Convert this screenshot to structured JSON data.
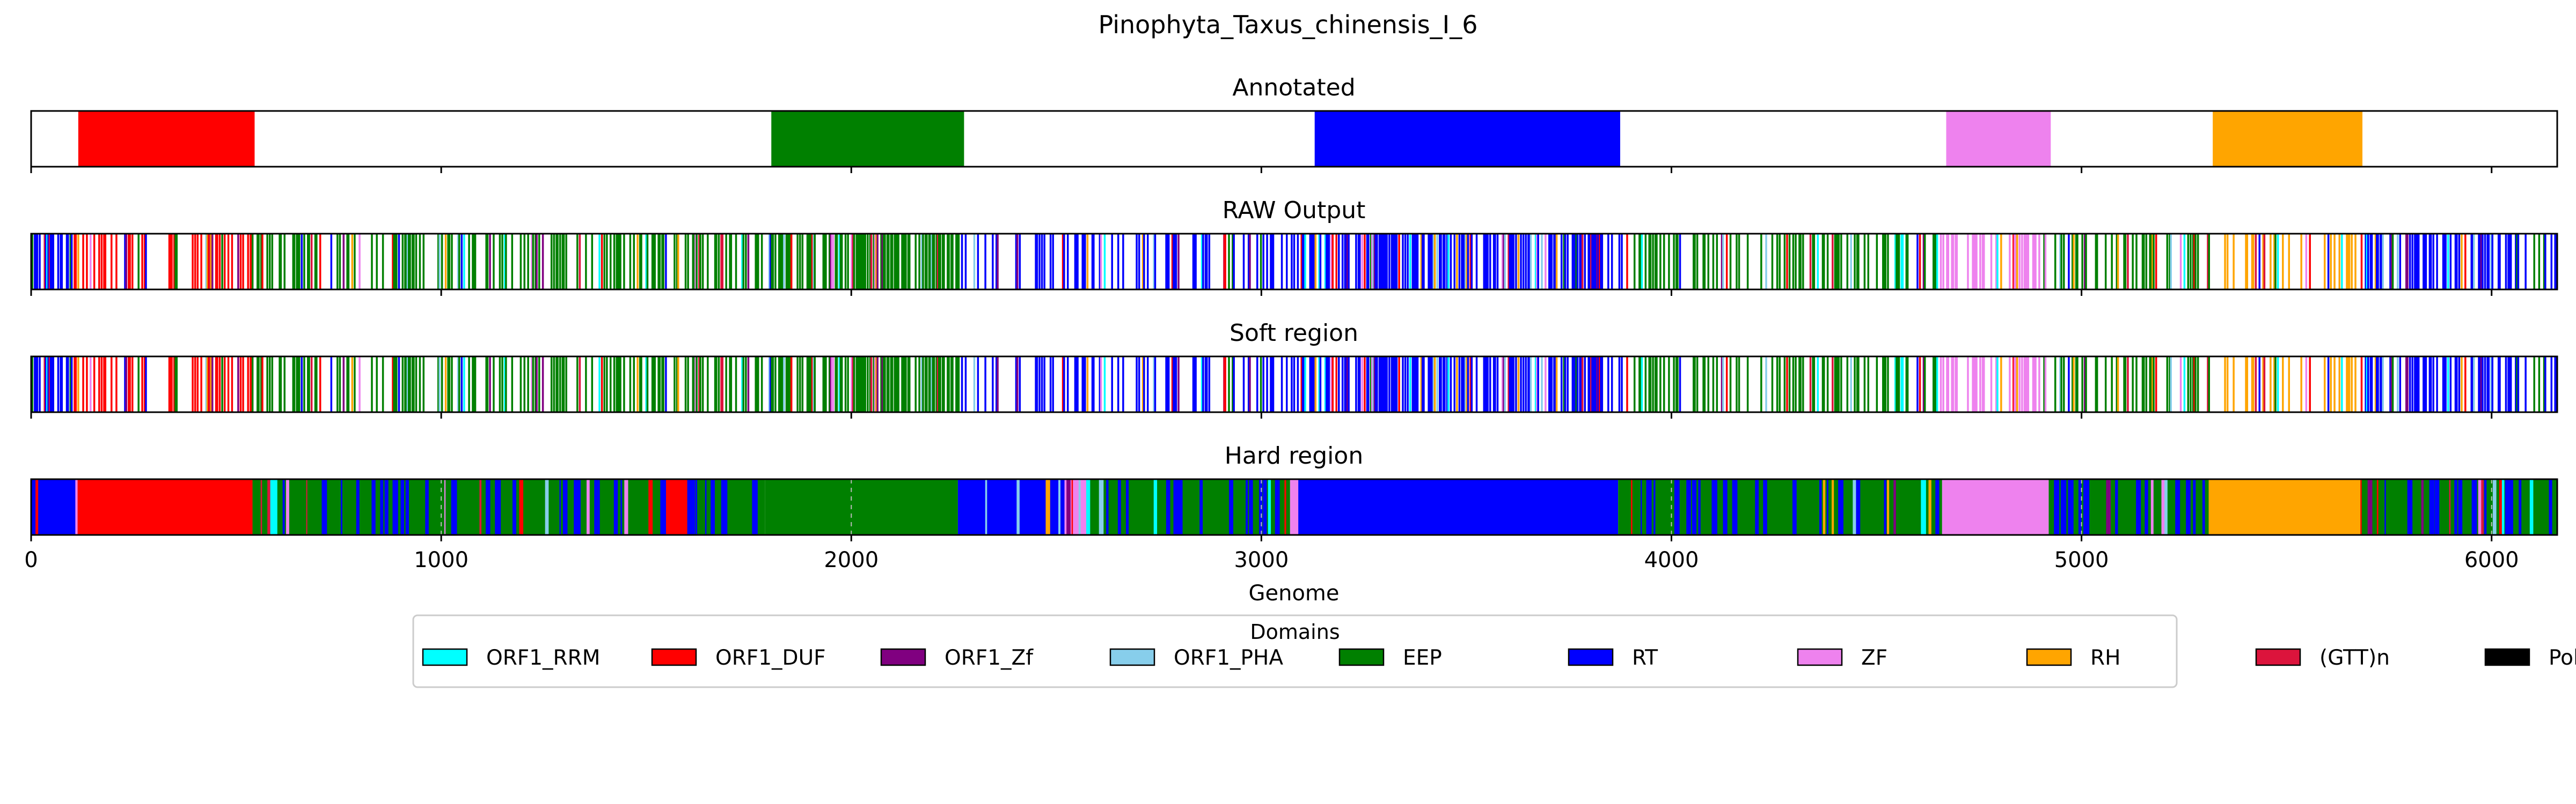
{
  "chart_data": {
    "type": "genome-track",
    "title": "Pinophyta_Taxus_chinensis_I_6",
    "xlabel": "Genome",
    "xlim": [
      0,
      6160
    ],
    "xticks": [
      0,
      1000,
      2000,
      3000,
      4000,
      5000,
      6000
    ],
    "xtick_labels": [
      "0",
      "1000",
      "2000",
      "3000",
      "4000",
      "5000",
      "6000"
    ],
    "colors": {
      "ORF1_RRM": "#00ffff",
      "ORF1_DUF": "#ff0000",
      "ORF1_Zf": "#800080",
      "ORF1_PHA": "#87ceeb",
      "EEP": "#008000",
      "RT": "#0000ff",
      "ZF": "#ee82ee",
      "RH": "#ffa500",
      "(GTT)n": "#dc143c",
      "PoliA": "#000000"
    },
    "legend": {
      "title": "Domains",
      "placement": "lower-center",
      "items": [
        "ORF1_RRM",
        "ORF1_DUF",
        "ORF1_Zf",
        "ORF1_PHA",
        "EEP",
        "RT",
        "ZF",
        "RH",
        "(GTT)n",
        "PoliA"
      ]
    },
    "panels": [
      {
        "title": "Annotated",
        "kind": "segments",
        "segments": [
          {
            "domain": "ORF1_DUF",
            "start": 115,
            "end": 545
          },
          {
            "domain": "EEP",
            "start": 1805,
            "end": 2275
          },
          {
            "domain": "RT",
            "start": 3130,
            "end": 3875
          },
          {
            "domain": "ZF",
            "start": 4670,
            "end": 4925
          },
          {
            "domain": "RH",
            "start": 5320,
            "end": 5685
          }
        ]
      },
      {
        "title": "RAW Output",
        "kind": "lines",
        "regions": [
          {
            "domain": "RT",
            "start": 0,
            "end": 100,
            "density": 0.5
          },
          {
            "domain": "ORF1_DUF",
            "start": 100,
            "end": 540,
            "density": 0.35
          },
          {
            "domain": "EEP",
            "start": 540,
            "end": 1800,
            "density": 0.35
          },
          {
            "domain": "EEP",
            "start": 1800,
            "end": 2270,
            "density": 0.55
          },
          {
            "domain": "RT",
            "start": 2270,
            "end": 3120,
            "density": 0.3
          },
          {
            "domain": "RT",
            "start": 3120,
            "end": 3880,
            "density": 0.6
          },
          {
            "domain": "EEP",
            "start": 3880,
            "end": 4660,
            "density": 0.35
          },
          {
            "domain": "ZF",
            "start": 4660,
            "end": 4930,
            "density": 0.35
          },
          {
            "domain": "EEP",
            "start": 4930,
            "end": 5320,
            "density": 0.35
          },
          {
            "domain": "RH",
            "start": 5320,
            "end": 5690,
            "density": 0.25
          },
          {
            "domain": "RT",
            "start": 5690,
            "end": 6160,
            "density": 0.45
          }
        ]
      },
      {
        "title": "Soft region",
        "kind": "lines",
        "regions": [
          {
            "domain": "RT",
            "start": 0,
            "end": 100,
            "density": 0.5
          },
          {
            "domain": "ORF1_DUF",
            "start": 100,
            "end": 540,
            "density": 0.35
          },
          {
            "domain": "EEP",
            "start": 540,
            "end": 1800,
            "density": 0.35
          },
          {
            "domain": "EEP",
            "start": 1800,
            "end": 2270,
            "density": 0.55
          },
          {
            "domain": "RT",
            "start": 2270,
            "end": 3120,
            "density": 0.3
          },
          {
            "domain": "RT",
            "start": 3120,
            "end": 3880,
            "density": 0.6
          },
          {
            "domain": "EEP",
            "start": 3880,
            "end": 4660,
            "density": 0.35
          },
          {
            "domain": "ZF",
            "start": 4660,
            "end": 4930,
            "density": 0.35
          },
          {
            "domain": "EEP",
            "start": 4930,
            "end": 5320,
            "density": 0.35
          },
          {
            "domain": "RH",
            "start": 5320,
            "end": 5690,
            "density": 0.25
          },
          {
            "domain": "RT",
            "start": 5690,
            "end": 6160,
            "density": 0.45
          }
        ]
      },
      {
        "title": "Hard region",
        "kind": "segments",
        "segments": [
          {
            "domain": "RT",
            "start": 0,
            "end": 110
          },
          {
            "domain": "ORF1_DUF",
            "start": 110,
            "end": 540
          },
          {
            "domain": "EEP",
            "start": 540,
            "end": 1540
          },
          {
            "domain": "ORF1_DUF",
            "start": 1540,
            "end": 1600
          },
          {
            "domain": "EEP",
            "start": 1600,
            "end": 1790
          },
          {
            "domain": "EEP",
            "start": 1790,
            "end": 2260
          },
          {
            "domain": "RT",
            "start": 2260,
            "end": 2520
          },
          {
            "domain": "ZF",
            "start": 2520,
            "end": 2580
          },
          {
            "domain": "EEP",
            "start": 2580,
            "end": 3070
          },
          {
            "domain": "ZF",
            "start": 3070,
            "end": 3090
          },
          {
            "domain": "RT",
            "start": 3090,
            "end": 3870
          },
          {
            "domain": "EEP",
            "start": 3870,
            "end": 4660
          },
          {
            "domain": "ZF",
            "start": 4660,
            "end": 4920
          },
          {
            "domain": "EEP",
            "start": 4920,
            "end": 5310
          },
          {
            "domain": "RH",
            "start": 5310,
            "end": 5680
          },
          {
            "domain": "EEP",
            "start": 5680,
            "end": 6160
          }
        ]
      }
    ]
  }
}
